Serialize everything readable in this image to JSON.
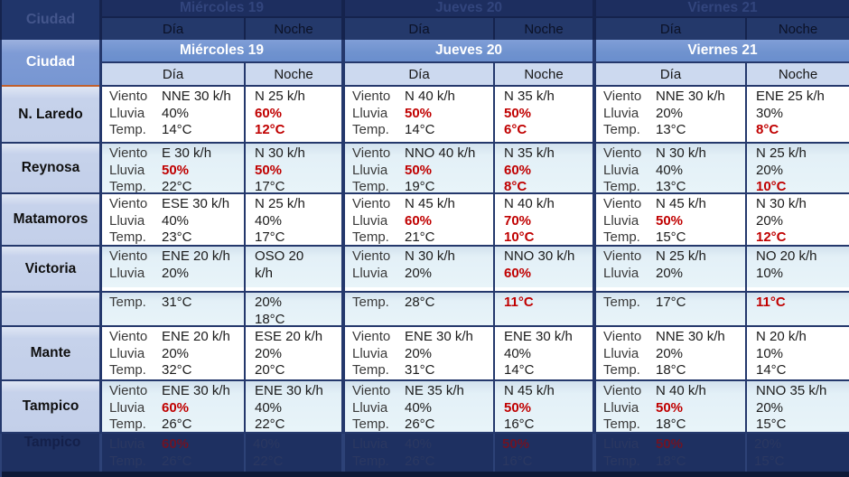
{
  "header": {
    "ciudad": "Ciudad",
    "days": [
      {
        "name": "Miércoles 19"
      },
      {
        "name": "Jueves 20"
      },
      {
        "name": "Viernes 21"
      }
    ],
    "dia": "Día",
    "noche": "Noche"
  },
  "labels": {
    "viento": "Viento",
    "lluvia": "Lluvia",
    "temp": "Temp."
  },
  "colors": {
    "alert_red": "#c00000",
    "header_blue": "#7093cf",
    "accent_orange": "#c05f2c",
    "band_navy": "#1e3061",
    "border_navy": "#24386c"
  },
  "cities": [
    {
      "name": "N. Laredo",
      "mie": {
        "dia": {
          "viento": "NNE 30 k/h",
          "lluvia": "40%",
          "temp": "14°C"
        },
        "noche": {
          "viento": "N 25 k/h",
          "lluvia": "60%",
          "temp": "12°C"
        }
      },
      "jue": {
        "dia": {
          "viento": "N 40 k/h",
          "lluvia": "50%",
          "temp": "14°C"
        },
        "noche": {
          "viento": "N 35 k/h",
          "lluvia": "50%",
          "temp": "6°C"
        }
      },
      "vie": {
        "dia": {
          "viento": "NNE 30 k/h",
          "lluvia": "20%",
          "temp": "13°C"
        },
        "noche": {
          "viento": "ENE 25 k/h",
          "lluvia": "30%",
          "temp": "8°C"
        }
      }
    },
    {
      "name": "Reynosa",
      "mie": {
        "dia": {
          "viento": "E 30 k/h",
          "lluvia": "50%",
          "temp": "22°C"
        },
        "noche": {
          "viento": "N 30 k/h",
          "lluvia": "50%",
          "temp": "17°C"
        }
      },
      "jue": {
        "dia": {
          "viento": "NNO 40 k/h",
          "lluvia": "50%",
          "temp": "19°C"
        },
        "noche": {
          "viento": "N 35 k/h",
          "lluvia": "60%",
          "temp": "8°C"
        }
      },
      "vie": {
        "dia": {
          "viento": "N 30 k/h",
          "lluvia": "40%",
          "temp": "13°C"
        },
        "noche": {
          "viento": "N 25 k/h",
          "lluvia": "20%",
          "temp": "10°C"
        }
      }
    },
    {
      "name": "Matamoros",
      "mie": {
        "dia": {
          "viento": "ESE 30 k/h",
          "lluvia": "40%",
          "temp": "23°C"
        },
        "noche": {
          "viento": "N 25 k/h",
          "lluvia": "40%",
          "temp": "17°C"
        }
      },
      "jue": {
        "dia": {
          "viento": "N 45 k/h",
          "lluvia": "60%",
          "temp": "21°C"
        },
        "noche": {
          "viento": "N 40 k/h",
          "lluvia": "70%",
          "temp": "10°C"
        }
      },
      "vie": {
        "dia": {
          "viento": "N 45 k/h",
          "lluvia": "50%",
          "temp": "15°C"
        },
        "noche": {
          "viento": "N 30 k/h",
          "lluvia": "20%",
          "temp": "12°C"
        }
      }
    },
    {
      "name": "Victoria",
      "mie": {
        "dia": {
          "viento": "ENE 20 k/h",
          "lluvia": "20%",
          "temp": "31°C"
        },
        "noche": {
          "viento": "OSO 20\nk/h",
          "lluvia": "20%",
          "temp": "18°C"
        }
      },
      "jue": {
        "dia": {
          "viento": "N 30 k/h",
          "lluvia": "20%",
          "temp": "28°C"
        },
        "noche": {
          "viento": "NNO 30 k/h",
          "lluvia": "60%",
          "temp": "11°C"
        }
      },
      "vie": {
        "dia": {
          "viento": "N 25 k/h",
          "lluvia": "20%",
          "temp": "17°C"
        },
        "noche": {
          "viento": "NO 20 k/h",
          "lluvia": "10%",
          "temp": "11°C"
        }
      }
    },
    {
      "name": "Mante",
      "mie": {
        "dia": {
          "viento": "ENE 20 k/h",
          "lluvia": "20%",
          "temp": "32°C"
        },
        "noche": {
          "viento": "ESE 20 k/h",
          "lluvia": "20%",
          "temp": "20°C"
        }
      },
      "jue": {
        "dia": {
          "viento": "ENE 30 k/h",
          "lluvia": "20%",
          "temp": "31°C"
        },
        "noche": {
          "viento": "ENE 30 k/h",
          "lluvia": "40%",
          "temp": "14°C"
        }
      },
      "vie": {
        "dia": {
          "viento": "NNE 30 k/h",
          "lluvia": "20%",
          "temp": "18°C"
        },
        "noche": {
          "viento": "N 20 k/h",
          "lluvia": "10%",
          "temp": "14°C"
        }
      }
    },
    {
      "name": "Tampico",
      "mie": {
        "dia": {
          "viento": "ENE 30 k/h",
          "lluvia": "60%",
          "temp": "26°C"
        },
        "noche": {
          "viento": "ENE 30 k/h",
          "lluvia": "40%",
          "temp": "22°C"
        }
      },
      "jue": {
        "dia": {
          "viento": "NE 35 k/h",
          "lluvia": "40%",
          "temp": "26°C"
        },
        "noche": {
          "viento": "N 45 k/h",
          "lluvia": "50%",
          "temp": "16°C"
        }
      },
      "vie": {
        "dia": {
          "viento": "N 40 k/h",
          "lluvia": "50%",
          "temp": "18°C"
        },
        "noche": {
          "viento": "NNO 35 k/h",
          "lluvia": "20%",
          "temp": "15°C"
        }
      }
    }
  ]
}
